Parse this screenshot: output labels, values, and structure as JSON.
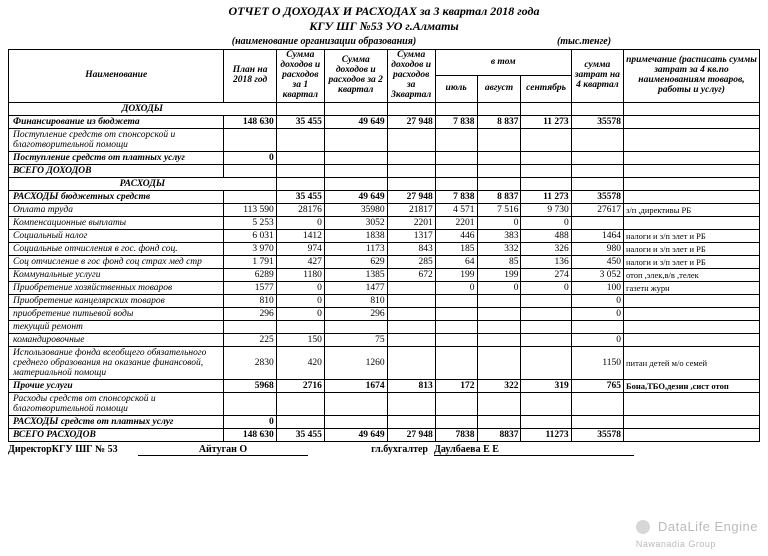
{
  "title": "ОТЧЕТ О ДОХОДАХ И РАСХОДАХ за 3 квартал 2018 года",
  "org": "КГУ ШГ №53 УО г.Алматы",
  "sub_org_note": "(наименование организации образования)",
  "sub_unit": "(тыс.тенге)",
  "headers": {
    "name": "Наименование",
    "plan": "План на 2018 год",
    "q1": "Сумма доходов и расходов за 1 квартал",
    "q2": "Сумма доходов и расходов за 2 квартал",
    "q3": "Сумма доходов и расходов за 3квартал",
    "in_that": "в том",
    "jul": "июль",
    "aug": "август",
    "sep": "сентябрь",
    "q4plan": "сумма затрат на 4 квартал",
    "note": "примечание (расписать суммы затрат за 4 кв.по наименованиям товаров, работы и услуг)"
  },
  "sections": {
    "income": "ДОХОДЫ",
    "expense": "РАСХОДЫ"
  },
  "rows": [
    {
      "bold": true,
      "label": "Финансирование из бюджета",
      "v": [
        "148 630",
        "35 455",
        "49 649",
        "27 948",
        "7 838",
        "8 837",
        "11 273",
        "35578",
        ""
      ]
    },
    {
      "label": "Поступление средств от спонсорской и благотворительной помощи",
      "v": [
        "",
        "",
        "",
        "",
        "",
        "",
        "",
        "",
        ""
      ]
    },
    {
      "bold": true,
      "label": "Поступление средств от платных услуг",
      "v": [
        "0",
        "",
        "",
        "",
        "",
        "",
        "",
        "",
        ""
      ]
    },
    {
      "bold": true,
      "label": "ВСЕГО ДОХОДОВ",
      "v": [
        "",
        "",
        "",
        "",
        "",
        "",
        "",
        "",
        ""
      ]
    }
  ],
  "exp_rows": [
    {
      "bold": true,
      "label": "РАСХОДЫ бюджетных средств",
      "v": [
        "",
        "35 455",
        "49 649",
        "27 948",
        "7 838",
        "8 837",
        "11 273",
        "35578",
        ""
      ]
    },
    {
      "label": "Оплата труда",
      "v": [
        "113 590",
        "28176",
        "35980",
        "21817",
        "4 571",
        "7 516",
        "9 730",
        "27617",
        "з/п ,директивы РБ"
      ]
    },
    {
      "label": "Компенсационные выплаты",
      "v": [
        "5 253",
        "0",
        "3052",
        "2201",
        "2201",
        "0",
        "0",
        "",
        ""
      ]
    },
    {
      "label": "Социальный налог",
      "v": [
        "6 031",
        "1412",
        "1838",
        "1317",
        "446",
        "383",
        "488",
        "1464",
        "налоги и з/п элет и РБ"
      ]
    },
    {
      "label": "Социальные отчисления в гос. фонд соц.",
      "v": [
        "3 970",
        "974",
        "1173",
        "843",
        "185",
        "332",
        "326",
        "980",
        "налоги и з/п элет и РБ"
      ]
    },
    {
      "label": "Соц отчисление в гос фонд соц страх мед стр",
      "v": [
        "1 791",
        "427",
        "629",
        "285",
        "64",
        "85",
        "136",
        "450",
        "налоги и з/п элет и РБ"
      ]
    },
    {
      "label": "Коммунальные услуги",
      "v": [
        "6289",
        "1180",
        "1385",
        "672",
        "199",
        "199",
        "274",
        "3 052",
        "отоп ,элек,в/в ,телек"
      ]
    },
    {
      "label": "Приобретение хозяйственных товаров",
      "v": [
        "1577",
        "0",
        "1477",
        "",
        "0",
        "0",
        "0",
        "100",
        "газетн журн"
      ]
    },
    {
      "label": "Приобретение канцелярских товаров",
      "v": [
        "810",
        "0",
        "810",
        "",
        "",
        "",
        "",
        "0",
        ""
      ]
    },
    {
      "label": "приобретение питьевой воды",
      "v": [
        "296",
        "0",
        "296",
        "",
        "",
        "",
        "",
        "0",
        ""
      ]
    },
    {
      "label": "текущий ремонт",
      "v": [
        "",
        "",
        "",
        "",
        "",
        "",
        "",
        "",
        ""
      ]
    },
    {
      "label": "командировочные",
      "v": [
        "225",
        "150",
        "75",
        "",
        "",
        "",
        "",
        "0",
        ""
      ]
    },
    {
      "label": "Использование фонда всеобщего обязательного среднего образования на оказание финансовой, материальной помощи",
      "v": [
        "2830",
        "420",
        "1260",
        "",
        "",
        "",
        "",
        "1150",
        "питан  детей м/о семей"
      ]
    },
    {
      "bold": true,
      "label": "Прочие услуги",
      "v": [
        "5968",
        "2716",
        "1674",
        "813",
        "172",
        "322",
        "319",
        "765",
        "Бона,ТБО,дезин ,сист отоп"
      ]
    },
    {
      "label": "Расходы средств от спонсорской и благотворительной помощи",
      "v": [
        "",
        "",
        "",
        "",
        "",
        "",
        "",
        "",
        ""
      ]
    },
    {
      "bold": true,
      "label": "РАСХОДЫ  средств от платных услуг",
      "v": [
        "0",
        "",
        "",
        "",
        "",
        "",
        "",
        "",
        ""
      ]
    },
    {
      "bold": true,
      "label": "ВСЕГО РАСХОДОВ",
      "v": [
        "148 630",
        "35 455",
        "49 649",
        "27 948",
        "7838",
        "8837",
        "11273",
        "35578",
        ""
      ]
    }
  ],
  "sign": {
    "dir_label": "ДиректорКГУ ШГ № 53",
    "dir_name": "Айтуган О",
    "acc_label": "гл.бухгалтер",
    "acc_name": "Даулбаева Е Е"
  },
  "watermark": "DataLife Engine",
  "watermark_sub": "Nawanadia Group",
  "colors": {
    "border": "#000000",
    "bg": "#ffffff",
    "wm": "#bbbbbb"
  }
}
